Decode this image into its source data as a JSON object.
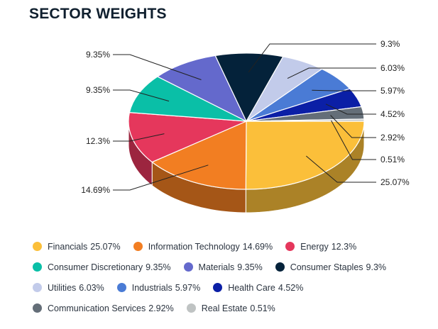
{
  "header": {
    "title": "SECTOR WEIGHTS"
  },
  "chart_data": {
    "type": "pie",
    "title": "SECTOR WEIGHTS",
    "slices": [
      {
        "label": "Financials",
        "value": 25.07,
        "display": "25.07%",
        "color": "#FBBF3A"
      },
      {
        "label": "Information Technology",
        "value": 14.69,
        "display": "14.69%",
        "color": "#F27E22"
      },
      {
        "label": "Energy",
        "value": 12.3,
        "display": "12.3%",
        "color": "#E5375C"
      },
      {
        "label": "Consumer Discretionary",
        "value": 9.35,
        "display": "9.35%",
        "color": "#0ABFA7"
      },
      {
        "label": "Materials",
        "value": 9.35,
        "display": "9.35%",
        "color": "#6469CC"
      },
      {
        "label": "Consumer Staples",
        "value": 9.3,
        "display": "9.3%",
        "color": "#04223A"
      },
      {
        "label": "Utilities",
        "value": 6.03,
        "display": "6.03%",
        "color": "#C2CBEA"
      },
      {
        "label": "Industrials",
        "value": 5.97,
        "display": "5.97%",
        "color": "#4A7BD5"
      },
      {
        "label": "Health Care",
        "value": 4.52,
        "display": "4.52%",
        "color": "#0B1FA6"
      },
      {
        "label": "Communication Services",
        "value": 2.92,
        "display": "2.92%",
        "color": "#646E78"
      },
      {
        "label": "Real Estate",
        "value": 0.51,
        "display": "0.51%",
        "color": "#BFC3C3"
      }
    ],
    "legend_position": "bottom",
    "style": "3d"
  }
}
